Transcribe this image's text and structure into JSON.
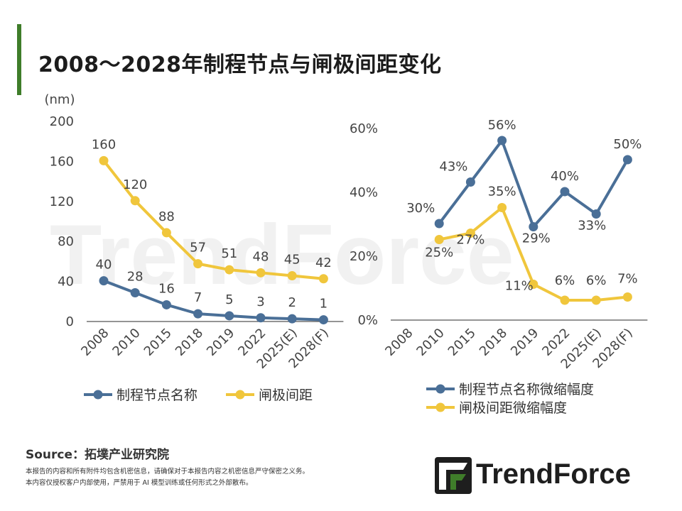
{
  "title": "2008～2028年制程节点与闸极间距变化",
  "watermark": "TrendForce",
  "colors": {
    "blue": "#4a6f97",
    "yellow": "#f0c63c",
    "accent": "#3f7d2a"
  },
  "chart_data": [
    {
      "type": "line",
      "categories": [
        "2008",
        "2010",
        "2015",
        "2018",
        "2019",
        "2022",
        "2025(E)",
        "2028(F)"
      ],
      "ylabel": "(nm)",
      "ylim": [
        0,
        200
      ],
      "yticks": [
        "0",
        "40",
        "80",
        "120",
        "160",
        "200"
      ],
      "legend_position": "bottom",
      "series": [
        {
          "name": "制程节点名称",
          "color": "#4a6f97",
          "values": [
            40,
            28,
            16,
            7,
            5,
            3,
            2,
            1
          ],
          "labels": [
            "40",
            "28",
            "16",
            "7",
            "5",
            "3",
            "2",
            "1"
          ]
        },
        {
          "name": "闸极间距",
          "color": "#f0c63c",
          "values": [
            160,
            120,
            88,
            57,
            51,
            48,
            45,
            42
          ],
          "labels": [
            "160",
            "120",
            "88",
            "57",
            "51",
            "48",
            "45",
            "42"
          ]
        }
      ]
    },
    {
      "type": "line",
      "categories": [
        "2008",
        "2010",
        "2015",
        "2018",
        "2019",
        "2022",
        "2025(E)",
        "2028(F)"
      ],
      "ylim": [
        0,
        60
      ],
      "yticks": [
        "0%",
        "20%",
        "40%",
        "60%"
      ],
      "legend_position": "bottom",
      "series": [
        {
          "name": "制程节点名称微缩幅度",
          "color": "#4a6f97",
          "values": [
            null,
            30,
            43,
            56,
            29,
            40,
            33,
            50
          ],
          "labels": [
            "",
            "30%",
            "43%",
            "56%",
            "29%",
            "40%",
            "33%",
            "50%"
          ]
        },
        {
          "name": "闸极间距微缩幅度",
          "color": "#f0c63c",
          "values": [
            null,
            25,
            27,
            35,
            11,
            6,
            6,
            7
          ],
          "labels": [
            "",
            "25%",
            "27%",
            "35%",
            "11%",
            "6%",
            "6%",
            "7%"
          ]
        }
      ]
    }
  ],
  "footer": {
    "source": "Source：拓墣产业研究院",
    "note_line1": "本报告的内容和所有附件均包含机密信息，请确保对于本报告内容之机密信息严守保密之义务。",
    "note_line2": "本内容仅授权客户内部使用，严禁用于 AI 模型训练或任何形式之外部散布。"
  },
  "logo": {
    "text": "TrendForce"
  }
}
